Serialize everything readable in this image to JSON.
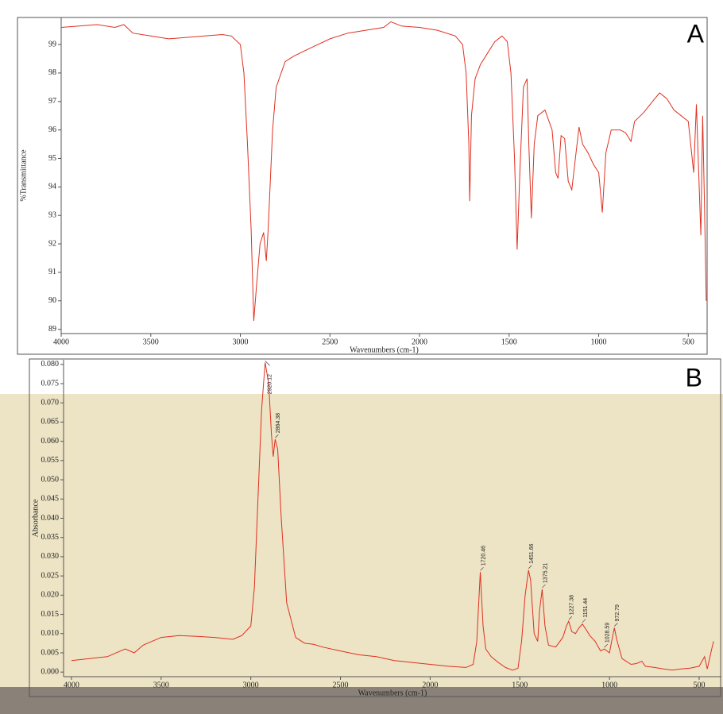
{
  "chart_data": [
    {
      "type": "line",
      "label": "A",
      "xlabel": "Wavenumbers (cm-1)",
      "ylabel": "%Transmittance",
      "color": "#e03020",
      "xlim": [
        4000,
        395
      ],
      "ylim": [
        88.85,
        99.95
      ],
      "xticks": [
        4000,
        3500,
        3000,
        2500,
        2000,
        1500,
        1000,
        500
      ],
      "yticks": [
        89,
        90,
        91,
        92,
        93,
        94,
        95,
        96,
        97,
        98,
        99
      ],
      "x": [
        4000,
        3900,
        3800,
        3700,
        3650,
        3600,
        3500,
        3400,
        3300,
        3200,
        3100,
        3050,
        3000,
        2980,
        2960,
        2940,
        2925,
        2910,
        2890,
        2870,
        2855,
        2845,
        2820,
        2800,
        2750,
        2700,
        2600,
        2500,
        2400,
        2300,
        2200,
        2160,
        2100,
        2000,
        1900,
        1800,
        1760,
        1740,
        1725,
        1720,
        1710,
        1690,
        1660,
        1620,
        1580,
        1540,
        1510,
        1490,
        1470,
        1455,
        1440,
        1420,
        1400,
        1390,
        1376,
        1360,
        1340,
        1300,
        1260,
        1240,
        1227,
        1210,
        1190,
        1170,
        1150,
        1130,
        1110,
        1090,
        1060,
        1030,
        1000,
        980,
        960,
        930,
        880,
        850,
        820,
        800,
        750,
        700,
        660,
        620,
        580,
        540,
        500,
        470,
        455,
        430,
        420,
        410,
        400
      ],
      "values": [
        99.6,
        99.65,
        99.7,
        99.6,
        99.7,
        99.4,
        99.3,
        99.2,
        99.25,
        99.3,
        99.35,
        99.3,
        99.0,
        98.0,
        95.5,
        92.5,
        89.3,
        90.5,
        92.0,
        92.4,
        91.4,
        92.5,
        96.0,
        97.5,
        98.4,
        98.6,
        98.9,
        99.2,
        99.4,
        99.5,
        99.6,
        99.8,
        99.65,
        99.6,
        99.5,
        99.3,
        99.0,
        98.0,
        95.5,
        93.5,
        96.5,
        97.8,
        98.3,
        98.7,
        99.1,
        99.3,
        99.1,
        98.0,
        95.0,
        91.8,
        94.5,
        97.5,
        97.8,
        95.5,
        92.9,
        95.5,
        96.5,
        96.7,
        96.0,
        94.5,
        94.3,
        95.8,
        95.7,
        94.2,
        93.9,
        95.0,
        96.1,
        95.5,
        95.2,
        94.8,
        94.5,
        93.1,
        95.2,
        96.0,
        96.0,
        95.9,
        95.6,
        96.3,
        96.6,
        97.0,
        97.3,
        97.1,
        96.7,
        96.5,
        96.3,
        94.5,
        96.9,
        92.3,
        96.5,
        93.5,
        90.0
      ]
    },
    {
      "type": "line",
      "label": "B",
      "xlabel": "Wavenumbers (cm-1)",
      "ylabel": "Absorbance",
      "color": "#e03020",
      "xlim": [
        4044,
        376
      ],
      "ylim": [
        -0.0012,
        0.0812
      ],
      "xticks": [
        4000,
        3500,
        3000,
        2500,
        2000,
        1500,
        1000,
        500
      ],
      "yticks": [
        {
          "value": 0,
          "label": "0.000"
        },
        {
          "value": 0.005,
          "label": "0.005"
        },
        {
          "value": 0.01,
          "label": "0.010"
        },
        {
          "value": 0.015,
          "label": "0.015"
        },
        {
          "value": 0.02,
          "label": "0.020"
        },
        {
          "value": 0.025,
          "label": "0.025"
        },
        {
          "value": 0.03,
          "label": "0.030"
        },
        {
          "value": 0.035,
          "label": "0.035"
        },
        {
          "value": 0.04,
          "label": "0.040"
        },
        {
          "value": 0.045,
          "label": "0.045"
        },
        {
          "value": 0.05,
          "label": "0.050"
        },
        {
          "value": 0.055,
          "label": "0.055"
        },
        {
          "value": 0.06,
          "label": "0.060"
        },
        {
          "value": 0.065,
          "label": "0.065"
        },
        {
          "value": 0.07,
          "label": "0.070"
        },
        {
          "value": 0.075,
          "label": "0.075"
        },
        {
          "value": 0.08,
          "label": "0.080"
        }
      ],
      "x": [
        4000,
        3900,
        3800,
        3700,
        3650,
        3600,
        3500,
        3400,
        3300,
        3200,
        3100,
        3050,
        3000,
        2980,
        2960,
        2940,
        2920.12,
        2900,
        2885,
        2875,
        2864.38,
        2850,
        2830,
        2800,
        2750,
        2700,
        2650,
        2600,
        2500,
        2400,
        2300,
        2200,
        2100,
        2000,
        1900,
        1800,
        1760,
        1740,
        1720.46,
        1705,
        1690,
        1660,
        1620,
        1580,
        1540,
        1510,
        1490,
        1470,
        1451.66,
        1440,
        1420,
        1400,
        1390,
        1375.21,
        1360,
        1340,
        1300,
        1260,
        1240,
        1227.38,
        1210,
        1190,
        1170,
        1151.44,
        1130,
        1110,
        1080,
        1050,
        1028.59,
        1000,
        990,
        972.79,
        960,
        930,
        880,
        850,
        820,
        800,
        750,
        700,
        650,
        600,
        550,
        500,
        470,
        455,
        430,
        420
      ],
      "values": [
        0.003,
        0.0035,
        0.004,
        0.006,
        0.005,
        0.007,
        0.009,
        0.0095,
        0.0093,
        0.009,
        0.0085,
        0.0095,
        0.012,
        0.022,
        0.045,
        0.068,
        0.0805,
        0.075,
        0.062,
        0.056,
        0.0605,
        0.058,
        0.04,
        0.018,
        0.009,
        0.0075,
        0.0072,
        0.0065,
        0.0055,
        0.0045,
        0.004,
        0.003,
        0.0025,
        0.002,
        0.0015,
        0.0012,
        0.002,
        0.008,
        0.026,
        0.012,
        0.006,
        0.004,
        0.0025,
        0.0012,
        0.0005,
        0.001,
        0.008,
        0.02,
        0.0265,
        0.024,
        0.01,
        0.008,
        0.016,
        0.0215,
        0.012,
        0.007,
        0.0065,
        0.009,
        0.012,
        0.0132,
        0.0105,
        0.01,
        0.0115,
        0.0125,
        0.011,
        0.0095,
        0.008,
        0.0055,
        0.006,
        0.005,
        0.0075,
        0.0115,
        0.0085,
        0.0035,
        0.002,
        0.0022,
        0.0028,
        0.0015,
        0.0012,
        0.0008,
        0.0005,
        0.0008,
        0.001,
        0.0015,
        0.004,
        0.0008,
        0.006,
        0.008
      ],
      "annotations": [
        2920.12,
        2864.38,
        1720.46,
        1451.66,
        1375.21,
        1227.38,
        1151.44,
        1028.59,
        972.79
      ]
    }
  ]
}
